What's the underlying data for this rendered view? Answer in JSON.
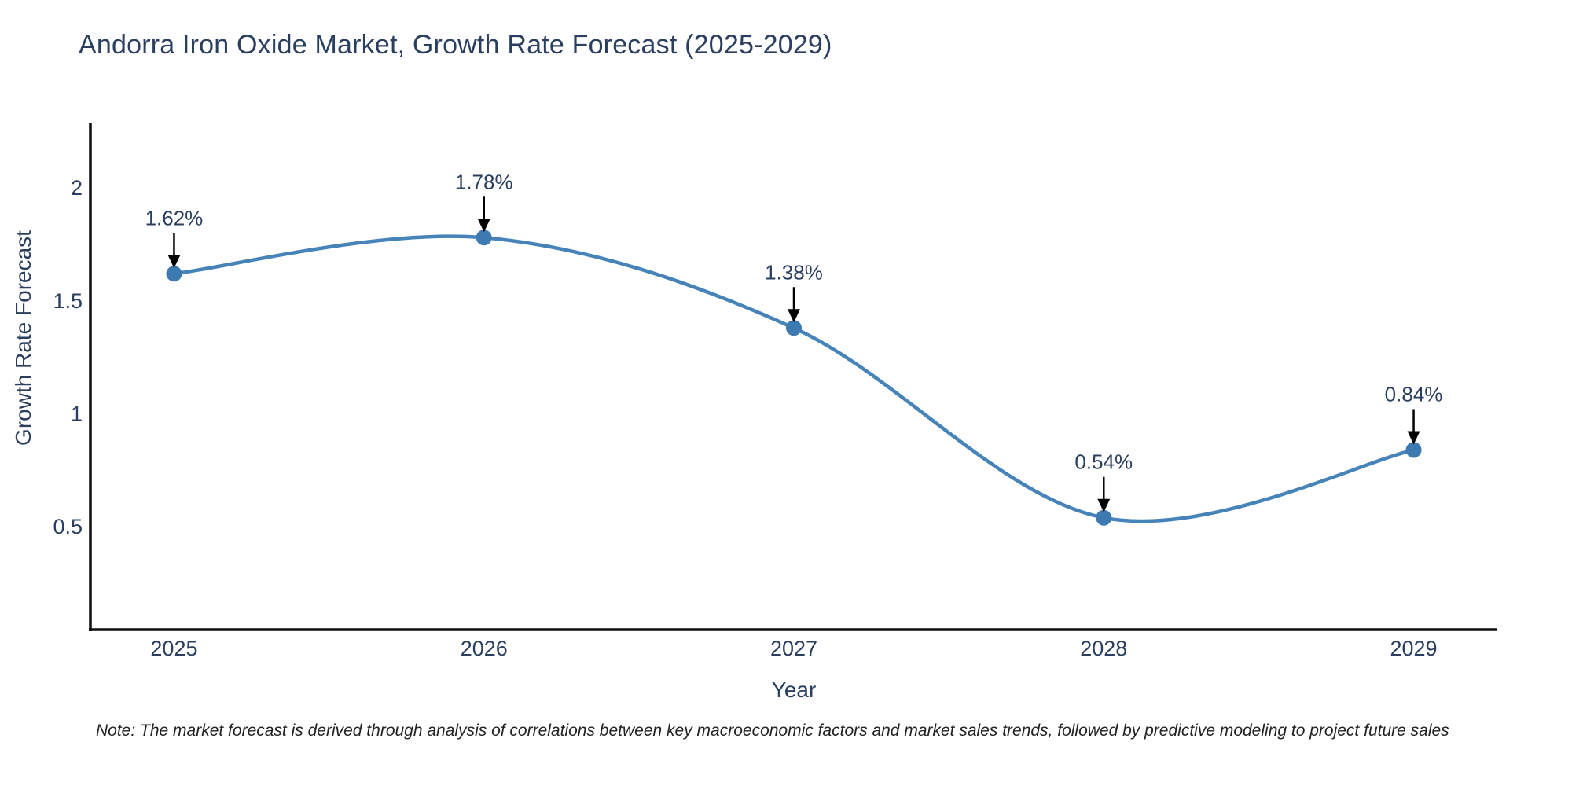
{
  "title": "Andorra Iron Oxide Market, Growth Rate Forecast (2025-2029)",
  "note": "Note: The market forecast is derived through analysis of correlations between key macroeconomic factors and market sales trends, followed by predictive modeling to project future sales",
  "chart_data": {
    "type": "line",
    "line_shape": "spline",
    "x": [
      2025,
      2026,
      2027,
      2028,
      2029
    ],
    "values": [
      1.62,
      1.78,
      1.38,
      0.54,
      0.84
    ],
    "point_labels": [
      "1.62%",
      "1.78%",
      "1.38%",
      "0.54%",
      "0.84%"
    ],
    "title": "Andorra Iron Oxide Market, Growth Rate Forecast (2025-2029)",
    "xlabel": "Year",
    "ylabel": "Growth Rate Forecast",
    "xticks": [
      2025,
      2026,
      2027,
      2028,
      2029
    ],
    "yticks": [
      0.5,
      1,
      1.5,
      2
    ],
    "xlim": [
      2024.73,
      2029.27
    ],
    "ylim": [
      0.045,
      2.275
    ],
    "grid": false,
    "legend": "none",
    "colors": {
      "line": "#4583b8",
      "marker": "#3e7ab2",
      "axis_line": "#0d0d0d",
      "text": "#2a3f5f",
      "annotation_text": "#2a3f5f",
      "annotation_arrow": "#000000",
      "background": "#ffffff"
    }
  }
}
